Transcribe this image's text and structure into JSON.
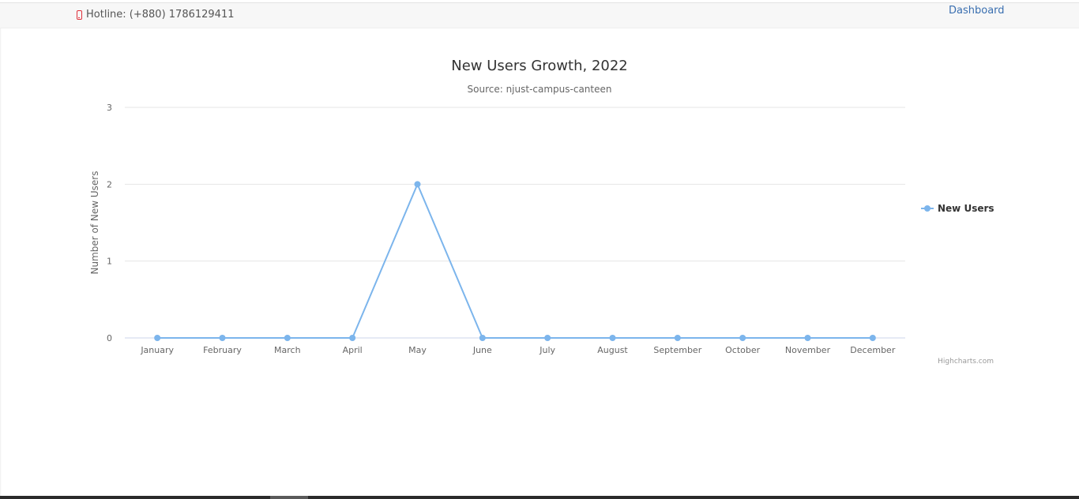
{
  "header": {
    "hotline": "Hotline: (+880) 1786129411",
    "dashboard_link": "Dashboard"
  },
  "chart_data": {
    "type": "line",
    "title": "New Users Growth, 2022",
    "subtitle": "Source: njust-campus-canteen",
    "ylabel": "Number of New Users",
    "xlabel": "",
    "categories": [
      "January",
      "February",
      "March",
      "April",
      "May",
      "June",
      "July",
      "August",
      "September",
      "October",
      "November",
      "December"
    ],
    "series": [
      {
        "name": "New Users",
        "values": [
          0,
          0,
          0,
          0,
          2,
          0,
          0,
          0,
          0,
          0,
          0,
          0
        ]
      }
    ],
    "ylim": [
      0,
      3
    ],
    "yticks": [
      "0",
      "1",
      "2",
      "3"
    ],
    "grid": true,
    "legend_position": "right",
    "credits": "Highcharts.com",
    "series_color": "#7cb5ec"
  }
}
